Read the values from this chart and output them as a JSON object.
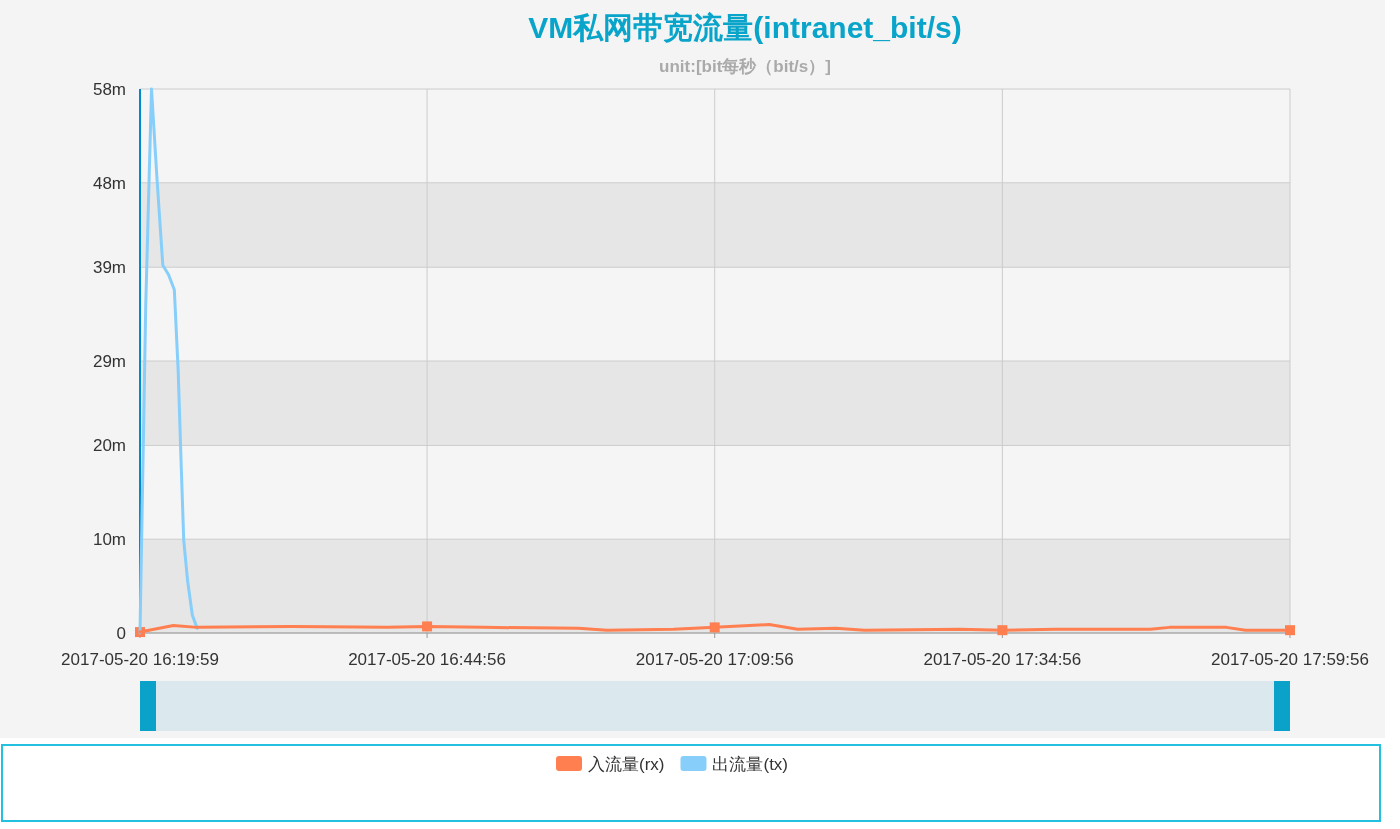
{
  "chart_data": {
    "type": "line",
    "title": "VM私网带宽流量(intranet_bit/s)",
    "subtitle": "unit:[bit每秒（bit/s）]",
    "xlim": [
      "2017-05-20T16:19:59",
      "2017-05-20T17:59:56"
    ],
    "xticks": [
      {
        "value": "2017-05-20T16:19:59",
        "label": "2017-05-20 16:19:59"
      },
      {
        "value": "2017-05-20T16:44:56",
        "label": "2017-05-20 16:44:56"
      },
      {
        "value": "2017-05-20T17:09:56",
        "label": "2017-05-20 17:09:56"
      },
      {
        "value": "2017-05-20T17:34:56",
        "label": "2017-05-20 17:34:56"
      },
      {
        "value": "2017-05-20T17:59:56",
        "label": "2017-05-20 17:59:56"
      }
    ],
    "ylim": [
      0,
      58
    ],
    "yticks": [
      0,
      {
        "value": 10,
        "label": "10m"
      },
      {
        "value": 20,
        "label": "20m"
      },
      {
        "value": 29,
        "label": "29m"
      },
      {
        "value": 39,
        "label": "39m"
      },
      {
        "value": 48,
        "label": "48m"
      },
      {
        "value": 58,
        "label": "58m"
      }
    ],
    "grid": true,
    "legend": "bottom",
    "line_style": "solid",
    "series": [
      {
        "name": "入流量(rx)",
        "color": "#ff7f50",
        "x": [
          "2017-05-20T16:19:59",
          "2017-05-20T16:22:53",
          "2017-05-20T16:24:57",
          "2017-05-20T16:33:14",
          "2017-05-20T16:41:31",
          "2017-05-20T16:44:56",
          "2017-05-20T16:49:48",
          "2017-05-20T16:58:05",
          "2017-05-20T17:00:34",
          "2017-05-20T17:06:22",
          "2017-05-20T17:09:56",
          "2017-05-20T17:14:40",
          "2017-05-20T17:17:09",
          "2017-05-20T17:20:28",
          "2017-05-20T17:22:57",
          "2017-05-20T17:31:14",
          "2017-05-20T17:34:56",
          "2017-05-20T17:39:31",
          "2017-05-20T17:47:48",
          "2017-05-20T17:49:27",
          "2017-05-20T17:54:25",
          "2017-05-20T17:56:04",
          "2017-05-20T17:59:56"
        ],
        "values": [
          0.1,
          0.8,
          0.6,
          0.7,
          0.6,
          0.7,
          0.6,
          0.5,
          0.3,
          0.4,
          0.6,
          0.9,
          0.4,
          0.5,
          0.3,
          0.4,
          0.3,
          0.4,
          0.4,
          0.6,
          0.6,
          0.3,
          0.3
        ]
      },
      {
        "name": "出流量(tx)",
        "color": "#87cefa",
        "x": [
          "2017-05-20T16:19:59",
          "2017-05-20T16:20:29",
          "2017-05-20T16:20:59",
          "2017-05-20T16:21:28",
          "2017-05-20T16:21:58",
          "2017-05-20T16:22:28",
          "2017-05-20T16:22:58",
          "2017-05-20T16:23:18",
          "2017-05-20T16:23:33",
          "2017-05-20T16:23:47",
          "2017-05-20T16:24:07",
          "2017-05-20T16:24:32",
          "2017-05-20T16:24:57"
        ],
        "values": [
          0,
          35,
          58,
          48.3,
          39.2,
          38.2,
          36.6,
          28,
          18.4,
          9.9,
          5.6,
          1.9,
          0.5
        ]
      },
      {
        "type": "scatter",
        "color": "#ff7f50",
        "marker": "square",
        "x": [
          "2017-05-20T16:19:59",
          "2017-05-20T16:44:56",
          "2017-05-20T17:09:56",
          "2017-05-20T17:34:56",
          "2017-05-20T17:59:56"
        ],
        "values": [
          0.1,
          0.7,
          0.6,
          0.3,
          0.3
        ]
      }
    ]
  }
}
